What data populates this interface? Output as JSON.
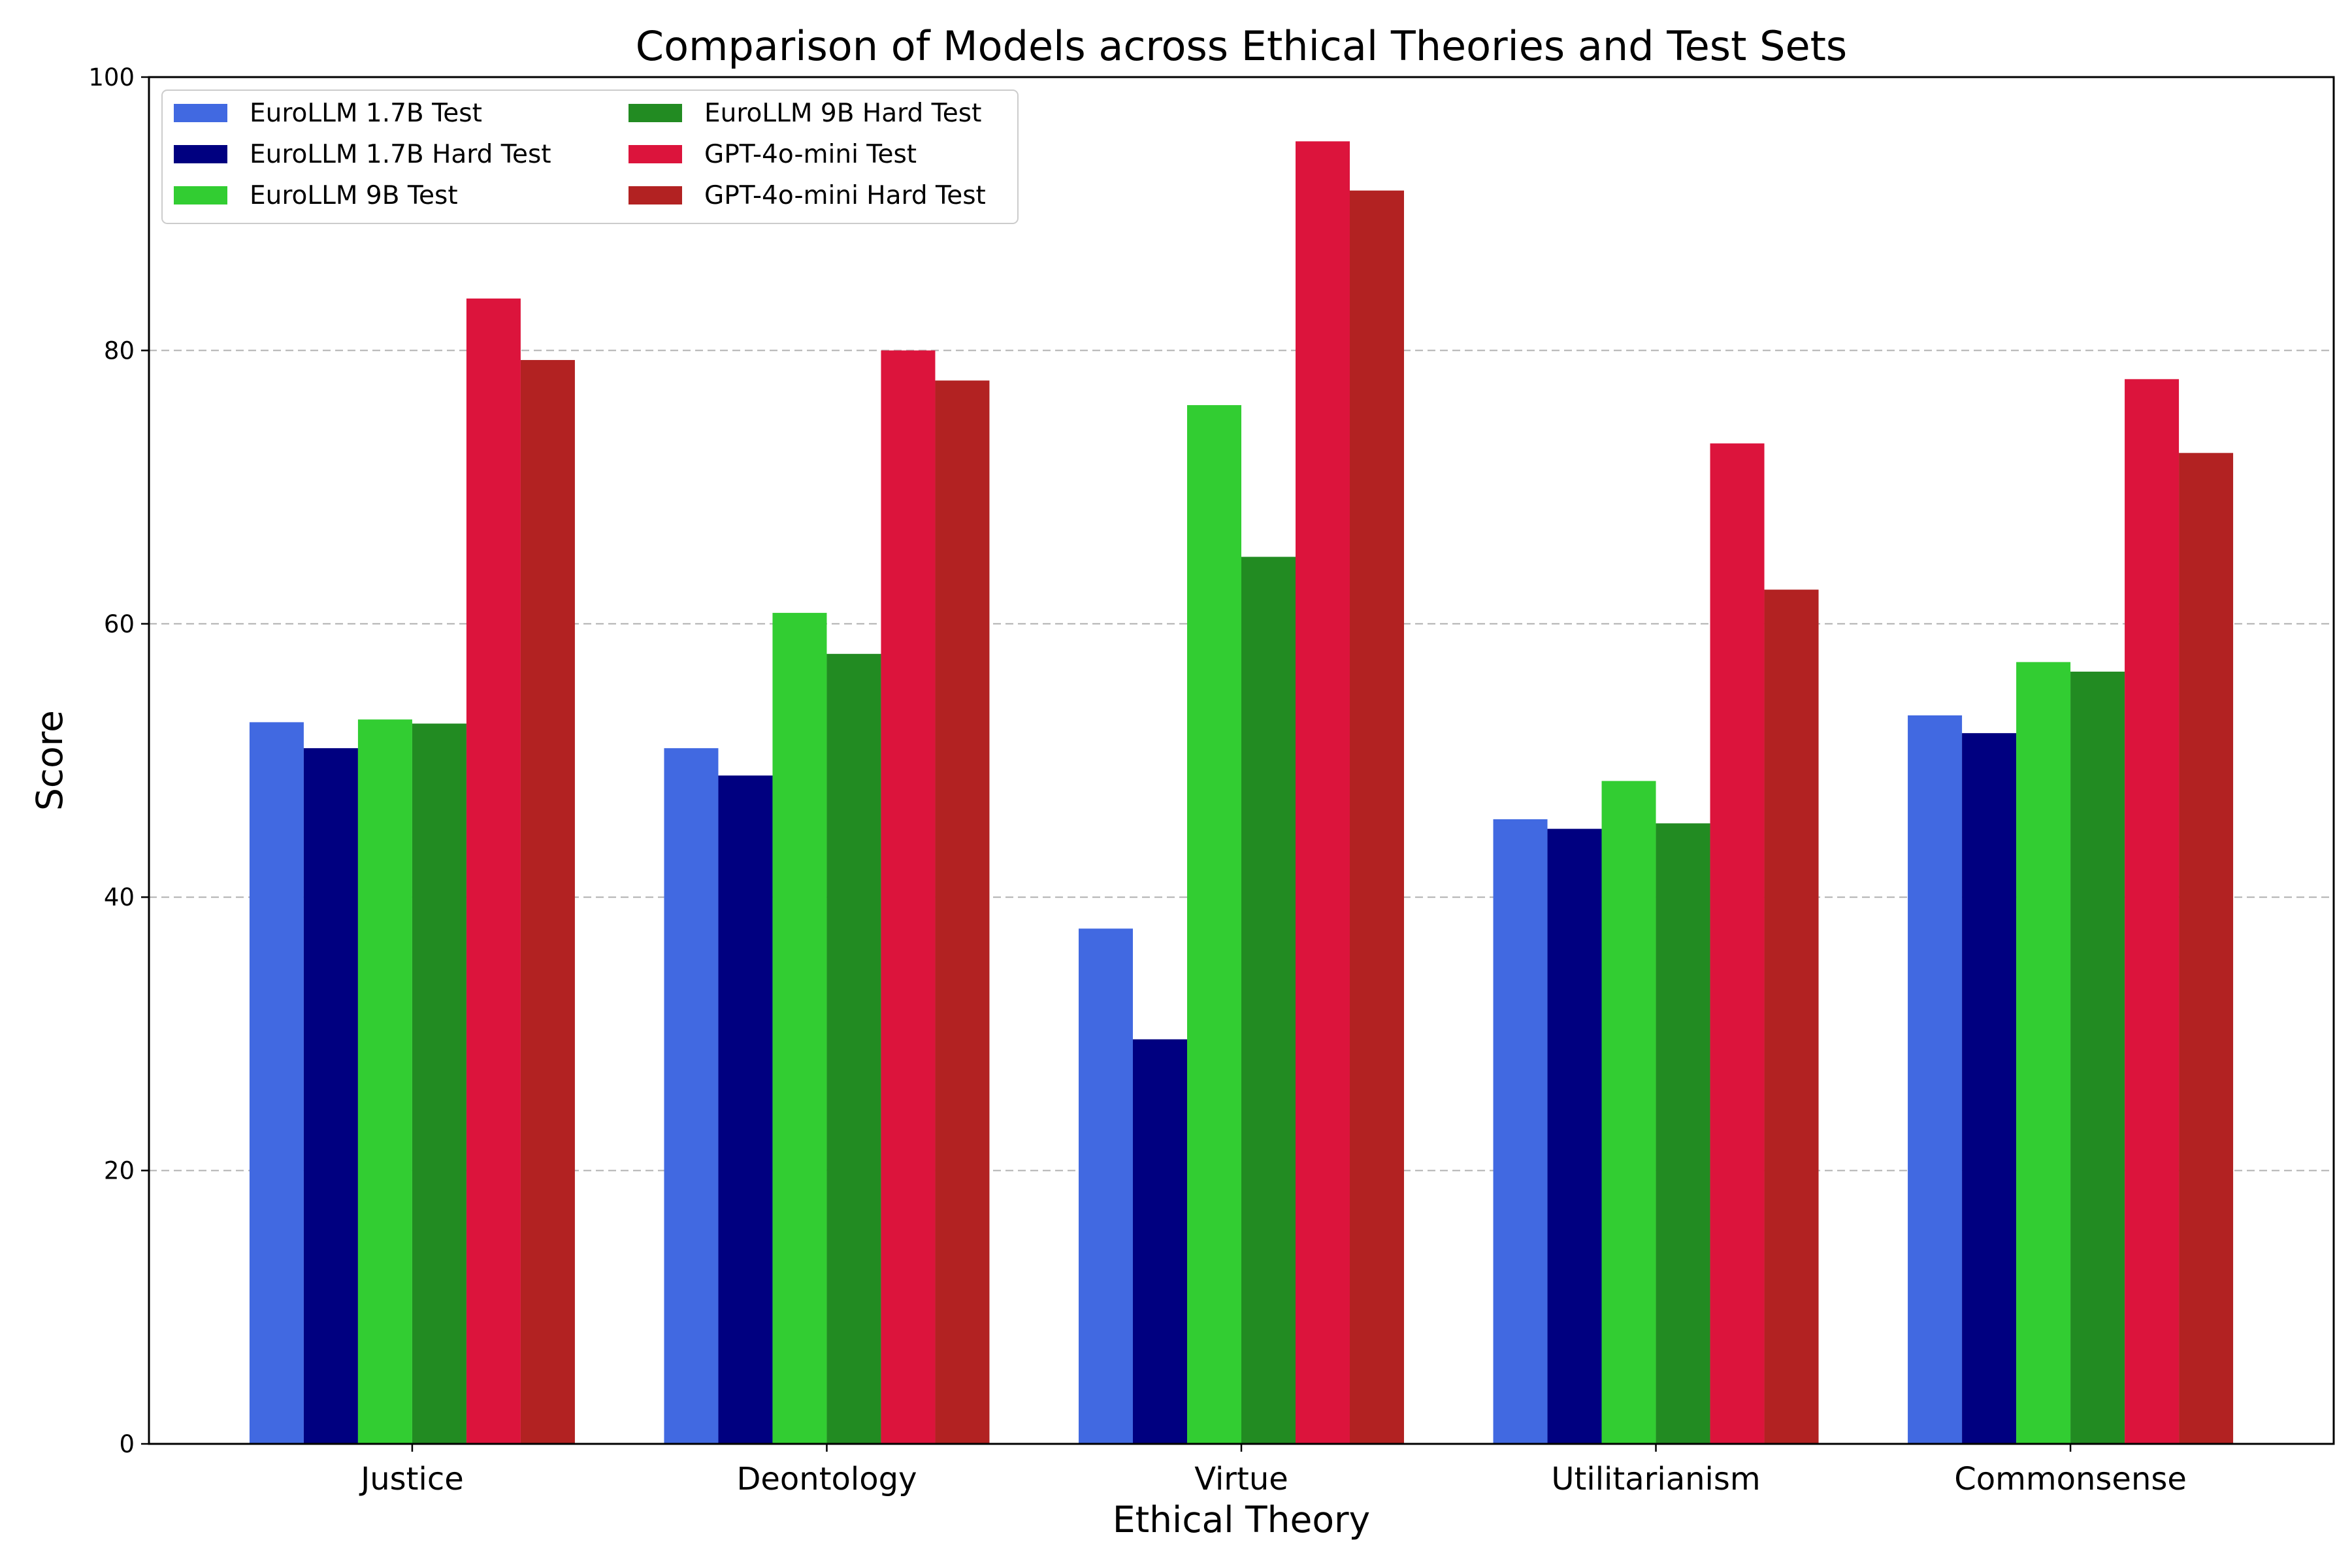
{
  "chart_data": {
    "type": "bar",
    "title": "Comparison of Models across Ethical Theories and Test Sets",
    "xlabel": "Ethical Theory",
    "ylabel": "Score",
    "ylim": [
      0,
      100
    ],
    "yticks": [
      "0",
      "20",
      "40",
      "60",
      "80",
      "100"
    ],
    "grid": "y dashed at 20, 40, 60, 80",
    "legend_position": "top-left",
    "categories": [
      "Justice",
      "Deontology",
      "Virtue",
      "Utilitarianism",
      "Commonsense"
    ],
    "series": [
      {
        "name": "EuroLLM 1.7B Test",
        "color": "#4169e1",
        "values": [
          52.8,
          50.9,
          37.7,
          45.7,
          53.3
        ]
      },
      {
        "name": "EuroLLM 1.7B Hard Test",
        "color": "#000080",
        "values": [
          50.9,
          48.9,
          29.6,
          45.0,
          52.0
        ]
      },
      {
        "name": "EuroLLM 9B Test",
        "color": "#32cd32",
        "values": [
          53.0,
          60.8,
          76.0,
          48.5,
          57.2
        ]
      },
      {
        "name": "EuroLLM 9B Hard Test",
        "color": "#228b22",
        "values": [
          52.7,
          57.8,
          64.9,
          45.4,
          56.5
        ]
      },
      {
        "name": "GPT-4o-mini Test",
        "color": "#dc143c",
        "values": [
          83.8,
          80.0,
          95.3,
          73.2,
          77.9
        ]
      },
      {
        "name": "GPT-4o-mini Hard Test",
        "color": "#b22222",
        "values": [
          79.3,
          77.8,
          91.7,
          62.5,
          72.5
        ]
      }
    ]
  }
}
